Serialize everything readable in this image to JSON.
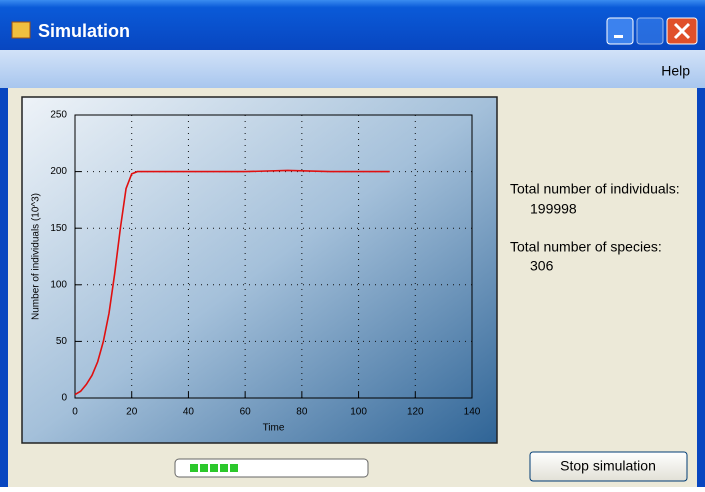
{
  "window": {
    "title": "Simulation"
  },
  "menu": {
    "items": [
      "Help"
    ]
  },
  "chart_data": {
    "type": "line",
    "xlabel": "Time",
    "ylabel": "Number of individuals (10^3)",
    "x": [
      0,
      2,
      4,
      6,
      8,
      10,
      12,
      14,
      16,
      18,
      20,
      22,
      40,
      60,
      75,
      90,
      111
    ],
    "values": [
      3,
      6,
      12,
      20,
      32,
      50,
      75,
      110,
      150,
      185,
      198,
      200,
      200,
      200,
      201,
      200,
      200
    ],
    "color": "#e01010",
    "xlim": [
      0,
      140
    ],
    "ylim": [
      0,
      250
    ],
    "xticks": [
      0,
      20,
      40,
      60,
      80,
      100,
      120,
      140
    ],
    "yticks": [
      0,
      50,
      100,
      150,
      200,
      250
    ],
    "grid": true
  },
  "stats": {
    "individuals_label": "Total number of individuals:",
    "individuals": 199998,
    "species_label": "Total number of species:",
    "species": 306
  },
  "button": {
    "label": "Stop simulation"
  }
}
